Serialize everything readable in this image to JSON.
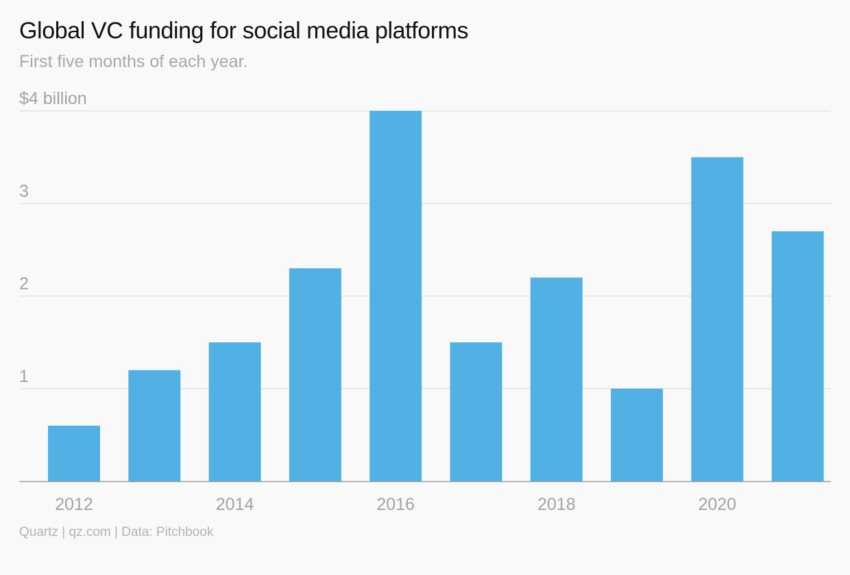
{
  "header": {
    "title": "Global VC funding for social media platforms",
    "subtitle": "First five months of each year."
  },
  "footer": {
    "source": "Quartz | qz.com | Data: Pitchbook"
  },
  "colors": {
    "bar": "#52b1e4",
    "grid": "#e2e2e2",
    "axis": "#999999",
    "background": "#f9f9f9"
  },
  "chart_data": {
    "type": "bar",
    "title": "Global VC funding for social media platforms",
    "subtitle": "First five months of each year.",
    "categories": [
      "2012",
      "2013",
      "2014",
      "2015",
      "2016",
      "2017",
      "2018",
      "2019",
      "2020",
      "2021"
    ],
    "values": [
      0.6,
      1.2,
      1.5,
      2.3,
      4.0,
      1.5,
      2.2,
      1.0,
      3.5,
      2.7
    ],
    "x_tick_labels": [
      "2012",
      "2014",
      "2016",
      "2018",
      "2020"
    ],
    "y_ticks": [
      {
        "value": 1,
        "label": "1"
      },
      {
        "value": 2,
        "label": "2"
      },
      {
        "value": 3,
        "label": "3"
      },
      {
        "value": 4,
        "label": "$4 billion"
      }
    ],
    "ylim": [
      0,
      4
    ],
    "grid": true,
    "legend": "none"
  }
}
